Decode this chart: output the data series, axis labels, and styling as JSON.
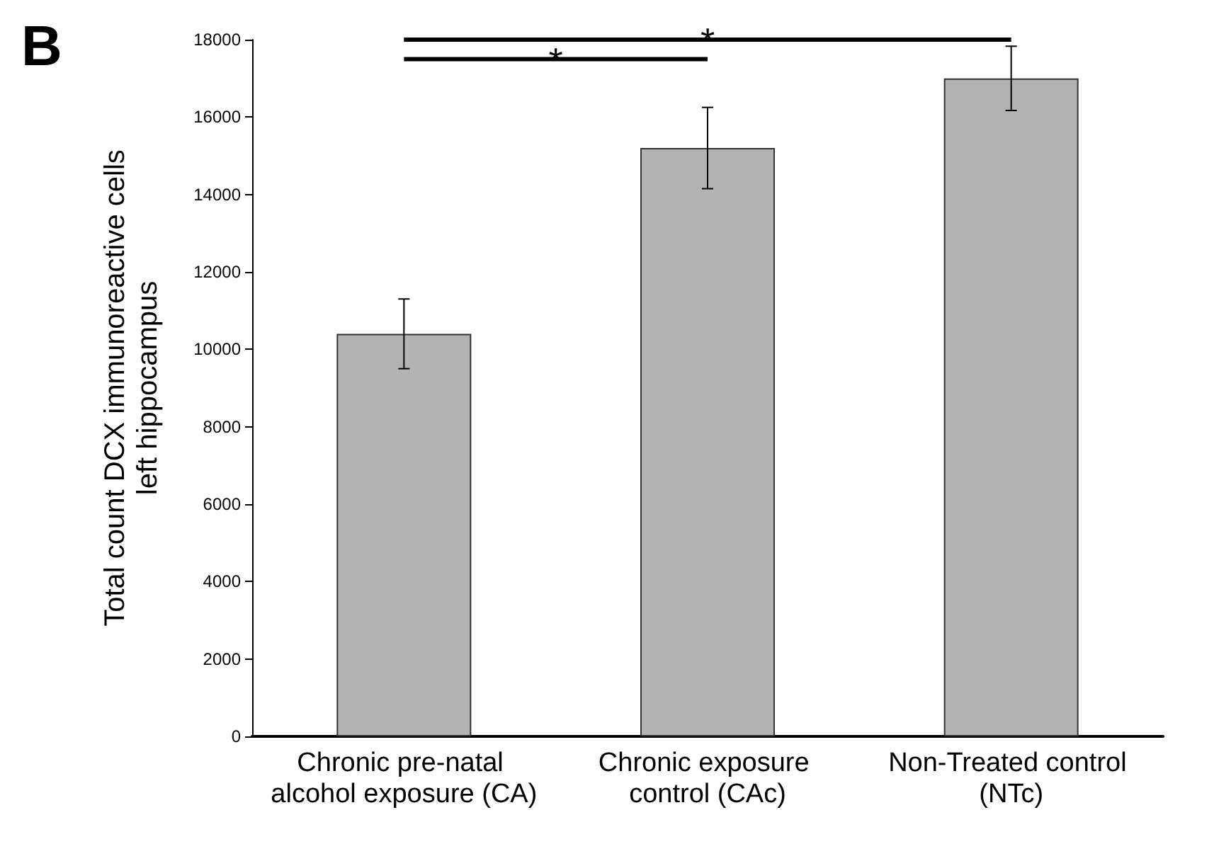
{
  "chart_data": {
    "type": "bar",
    "title": "B",
    "ylabel": "Total count DCX immunoreactive cells\nleft hippocampus",
    "categories": [
      "Chronic pre-natal alcohol exposure (CA)",
      "Chronic exposure control (CAc)",
      "Non-Treated control (NTc)"
    ],
    "values": [
      10400,
      15200,
      17000
    ],
    "color": "#b3b3b3",
    "errors": [
      900,
      1050,
      830
    ],
    "ylim": [
      0,
      18000
    ],
    "yticks": [
      0,
      2000,
      4000,
      6000,
      8000,
      10000,
      12000,
      14000,
      16000,
      18000
    ],
    "grid": false,
    "annotations": [
      "*",
      "*"
    ]
  }
}
